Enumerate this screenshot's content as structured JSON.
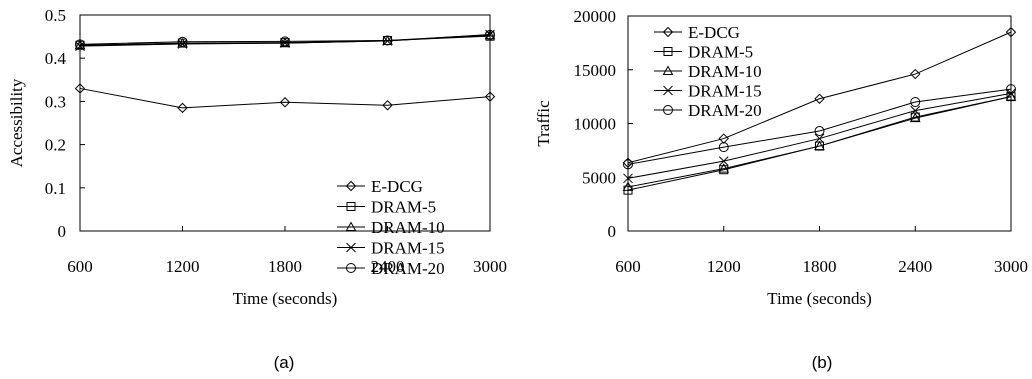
{
  "chart_data": [
    {
      "type": "line",
      "x": [
        600,
        1200,
        1800,
        2400,
        3000
      ],
      "xlabel": "Time (seconds)",
      "ylabel": "Accessibility",
      "xticks": [
        "600",
        "1200",
        "1800",
        "2400",
        "3000"
      ],
      "yticks": [
        "0",
        "0.1",
        "0.2",
        "0.3",
        "0.4",
        "0.5"
      ],
      "ylim": [
        0,
        0.5
      ],
      "grid": false,
      "legend_position": "bottom-right",
      "caption": "(a)",
      "series": [
        {
          "name": "E-DCG",
          "marker": "diamond",
          "values": [
            0.33,
            0.285,
            0.298,
            0.291,
            0.311
          ]
        },
        {
          "name": "DRAM-5",
          "marker": "square",
          "values": [
            0.43,
            0.435,
            0.436,
            0.441,
            0.451
          ]
        },
        {
          "name": "DRAM-10",
          "marker": "triangle",
          "values": [
            0.43,
            0.434,
            0.435,
            0.44,
            0.453
          ]
        },
        {
          "name": "DRAM-15",
          "marker": "x",
          "values": [
            0.428,
            0.433,
            0.435,
            0.44,
            0.455
          ]
        },
        {
          "name": "DRAM-20",
          "marker": "circle",
          "values": [
            0.432,
            0.438,
            0.439,
            0.441,
            0.454
          ]
        }
      ]
    },
    {
      "type": "line",
      "x": [
        600,
        1200,
        1800,
        2400,
        3000
      ],
      "xlabel": "Time (seconds)",
      "ylabel": "Traffic",
      "xticks": [
        "600",
        "1200",
        "1800",
        "2400",
        "3000"
      ],
      "yticks": [
        "0",
        "5000",
        "10000",
        "15000",
        "20000"
      ],
      "ylim": [
        0,
        20000
      ],
      "grid": false,
      "legend_position": "top-left",
      "caption": "(b)",
      "series": [
        {
          "name": "E-DCG",
          "marker": "diamond",
          "values": [
            6350,
            8600,
            12300,
            14600,
            18500
          ]
        },
        {
          "name": "DRAM-5",
          "marker": "square",
          "values": [
            3800,
            5700,
            7900,
            10600,
            12500
          ]
        },
        {
          "name": "DRAM-10",
          "marker": "triangle",
          "values": [
            4100,
            5800,
            7900,
            10500,
            12500
          ]
        },
        {
          "name": "DRAM-15",
          "marker": "x",
          "values": [
            4900,
            6500,
            8600,
            11200,
            12800
          ]
        },
        {
          "name": "DRAM-20",
          "marker": "circle",
          "values": [
            6200,
            7800,
            9300,
            12000,
            13200
          ]
        }
      ]
    }
  ]
}
